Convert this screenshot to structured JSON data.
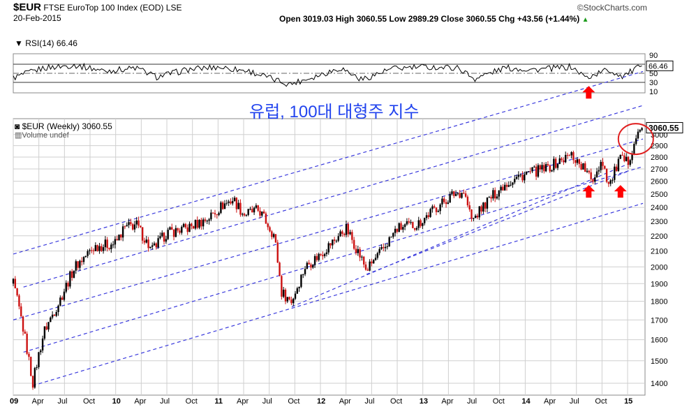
{
  "header": {
    "symbol": "$EUR",
    "name": "FTSE EuroTop 100 Index (EOD)",
    "exchange": "LSE",
    "date": "20-Feb-2015",
    "brand": "©StockCharts.com",
    "ohlc_text": "Open 3019.03  High 3060.55  Low 2989.29  Close 3060.55  Chg +43.56 (+1.44%)",
    "ohlc_arrow": "▲"
  },
  "annotation": {
    "korean_title": "유럽, 100대 대형주 지수"
  },
  "chart_data": [
    {
      "type": "line",
      "title": "RSI(14) 66.46",
      "last_value": "66.46",
      "ylim": [
        10,
        90
      ],
      "yticks": [
        10,
        30,
        50,
        70,
        90
      ],
      "reference_lines": [
        30,
        50,
        70
      ],
      "approx_series": [
        {
          "t": 2009.0,
          "v": 40
        },
        {
          "t": 2009.3,
          "v": 62
        },
        {
          "t": 2009.6,
          "v": 68
        },
        {
          "t": 2009.9,
          "v": 55
        },
        {
          "t": 2010.2,
          "v": 62
        },
        {
          "t": 2010.4,
          "v": 42
        },
        {
          "t": 2010.7,
          "v": 58
        },
        {
          "t": 2011.0,
          "v": 64
        },
        {
          "t": 2011.3,
          "v": 55
        },
        {
          "t": 2011.55,
          "v": 36
        },
        {
          "t": 2011.7,
          "v": 26
        },
        {
          "t": 2011.9,
          "v": 40
        },
        {
          "t": 2012.2,
          "v": 62
        },
        {
          "t": 2012.4,
          "v": 36
        },
        {
          "t": 2012.7,
          "v": 60
        },
        {
          "t": 2013.0,
          "v": 64
        },
        {
          "t": 2013.35,
          "v": 62
        },
        {
          "t": 2013.5,
          "v": 38
        },
        {
          "t": 2013.8,
          "v": 62
        },
        {
          "t": 2014.1,
          "v": 58
        },
        {
          "t": 2014.45,
          "v": 64
        },
        {
          "t": 2014.6,
          "v": 40
        },
        {
          "t": 2014.8,
          "v": 58
        },
        {
          "t": 2014.95,
          "v": 44
        },
        {
          "t": 2015.14,
          "v": 66.46
        }
      ]
    },
    {
      "type": "candlestick",
      "title": "$EUR (Weekly) 3060.55",
      "volume_label": "Volume undef",
      "last_value": "3060.55",
      "y_scale": "log",
      "ylim": [
        1350,
        3150
      ],
      "yticks": [
        1400,
        1500,
        1600,
        1700,
        1800,
        1900,
        2000,
        2100,
        2200,
        2300,
        2400,
        2500,
        2600,
        2700,
        2800,
        2900,
        3000
      ],
      "x_tick_labels": [
        "09",
        "Apr",
        "Jul",
        "Oct",
        "10",
        "Apr",
        "Jul",
        "Oct",
        "11",
        "Apr",
        "Jul",
        "Oct",
        "12",
        "Apr",
        "Jul",
        "Oct",
        "13",
        "Apr",
        "Jul",
        "Oct",
        "14",
        "Apr",
        "Jul",
        "Oct",
        "15"
      ],
      "x_tick_times": [
        2009.0,
        2009.25,
        2009.5,
        2009.75,
        2010.0,
        2010.25,
        2010.5,
        2010.75,
        2011.0,
        2011.25,
        2011.5,
        2011.75,
        2012.0,
        2012.25,
        2012.5,
        2012.75,
        2013.0,
        2013.25,
        2013.5,
        2013.75,
        2014.0,
        2014.25,
        2014.5,
        2014.75,
        2015.0
      ],
      "approx_close_path": [
        {
          "t": 2009.0,
          "v": 1900
        },
        {
          "t": 2009.08,
          "v": 1700
        },
        {
          "t": 2009.19,
          "v": 1400
        },
        {
          "t": 2009.3,
          "v": 1640
        },
        {
          "t": 2009.45,
          "v": 1800
        },
        {
          "t": 2009.6,
          "v": 2000
        },
        {
          "t": 2009.8,
          "v": 2130
        },
        {
          "t": 2010.0,
          "v": 2150
        },
        {
          "t": 2010.08,
          "v": 2250
        },
        {
          "t": 2010.2,
          "v": 2280
        },
        {
          "t": 2010.35,
          "v": 2100
        },
        {
          "t": 2010.5,
          "v": 2220
        },
        {
          "t": 2010.7,
          "v": 2250
        },
        {
          "t": 2010.9,
          "v": 2320
        },
        {
          "t": 2011.05,
          "v": 2420
        },
        {
          "t": 2011.15,
          "v": 2460
        },
        {
          "t": 2011.25,
          "v": 2350
        },
        {
          "t": 2011.4,
          "v": 2380
        },
        {
          "t": 2011.55,
          "v": 2200
        },
        {
          "t": 2011.62,
          "v": 1850
        },
        {
          "t": 2011.72,
          "v": 1800
        },
        {
          "t": 2011.85,
          "v": 2000
        },
        {
          "t": 2012.0,
          "v": 2080
        },
        {
          "t": 2012.15,
          "v": 2180
        },
        {
          "t": 2012.25,
          "v": 2250
        },
        {
          "t": 2012.35,
          "v": 2120
        },
        {
          "t": 2012.45,
          "v": 1980
        },
        {
          "t": 2012.6,
          "v": 2100
        },
        {
          "t": 2012.75,
          "v": 2250
        },
        {
          "t": 2012.95,
          "v": 2280
        },
        {
          "t": 2013.1,
          "v": 2380
        },
        {
          "t": 2013.3,
          "v": 2500
        },
        {
          "t": 2013.4,
          "v": 2520
        },
        {
          "t": 2013.48,
          "v": 2300
        },
        {
          "t": 2013.6,
          "v": 2420
        },
        {
          "t": 2013.8,
          "v": 2580
        },
        {
          "t": 2014.0,
          "v": 2660
        },
        {
          "t": 2014.2,
          "v": 2700
        },
        {
          "t": 2014.45,
          "v": 2820
        },
        {
          "t": 2014.58,
          "v": 2700
        },
        {
          "t": 2014.65,
          "v": 2600
        },
        {
          "t": 2014.75,
          "v": 2780
        },
        {
          "t": 2014.82,
          "v": 2560
        },
        {
          "t": 2014.92,
          "v": 2780
        },
        {
          "t": 2015.0,
          "v": 2750
        },
        {
          "t": 2015.07,
          "v": 2950
        },
        {
          "t": 2015.14,
          "v": 3060.55
        }
      ],
      "trend_channels": [
        {
          "t1": 2009.0,
          "v1": 2080,
          "t2": 2015.15,
          "v2": 3640
        },
        {
          "t1": 2009.1,
          "v1": 1880,
          "t2": 2015.15,
          "v2": 3280
        },
        {
          "t1": 2009.0,
          "v1": 1700,
          "t2": 2015.15,
          "v2": 2960
        },
        {
          "t1": 2009.1,
          "v1": 1540,
          "t2": 2015.15,
          "v2": 2720
        },
        {
          "t1": 2009.19,
          "v1": 1390,
          "t2": 2015.15,
          "v2": 2430
        },
        {
          "t1": 2011.72,
          "v1": 1770,
          "t2": 2015.0,
          "v2": 2740
        },
        {
          "t1": 2012.45,
          "v1": 1955,
          "t2": 2015.0,
          "v2": 2680
        }
      ],
      "highlight_circle": {
        "t": 2015.08,
        "v": 2960
      },
      "red_arrows": [
        {
          "t": 2014.62,
          "v": 2570
        },
        {
          "t": 2014.93,
          "v": 2570
        }
      ]
    }
  ],
  "rsi_arrow": {
    "t": 2014.62,
    "v": 22
  },
  "colors": {
    "up": "#000000",
    "down": "#cc1111",
    "channel": "#3b3bdd",
    "arrow": "#ff0000",
    "annotation": "#2244ee",
    "grid": "#cfcfcf"
  }
}
